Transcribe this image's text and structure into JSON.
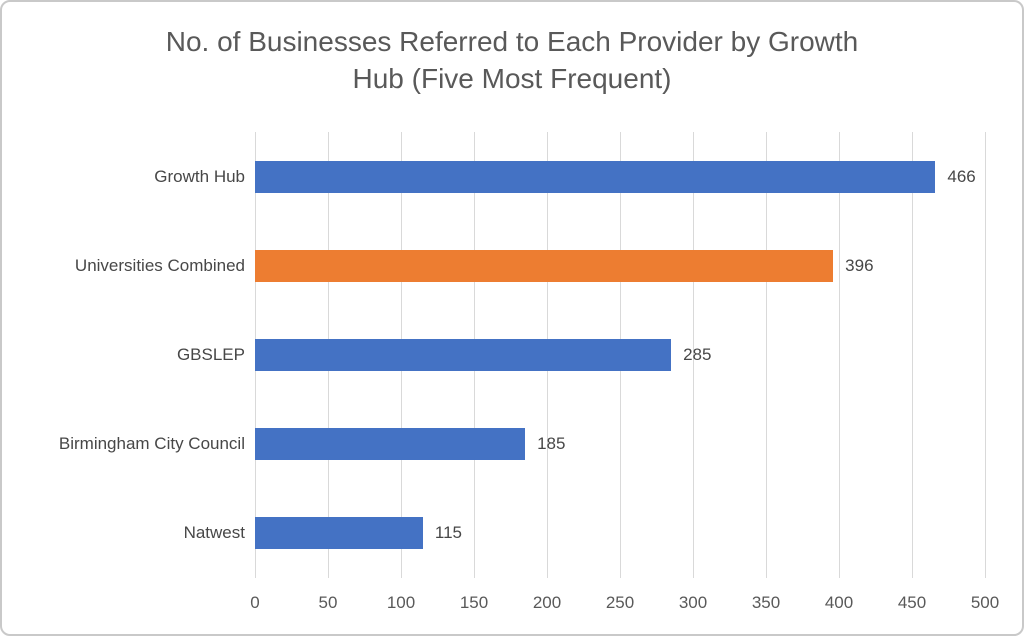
{
  "chart": {
    "title_lines": [
      "No. of Businesses Referred to Each Provider by Growth",
      "Hub (Five Most Frequent)"
    ]
  },
  "chart_data": {
    "type": "bar",
    "orientation": "horizontal",
    "title": "No. of Businesses Referred to Each Provider by Growth Hub (Five Most Frequent)",
    "categories": [
      "Growth Hub",
      "Universities Combined",
      "GBSLEP",
      "Birmingham City Council",
      "Natwest"
    ],
    "values": [
      466,
      396,
      285,
      185,
      115
    ],
    "data_labels": [
      "466",
      "396",
      "285",
      "185",
      "115"
    ],
    "bar_colors": [
      "#4472C4",
      "#ED7D31",
      "#4472C4",
      "#4472C4",
      "#4472C4"
    ],
    "xlabel": "",
    "ylabel": "",
    "xlim": [
      0,
      500
    ],
    "xticks": [
      0,
      50,
      100,
      150,
      200,
      250,
      300,
      350,
      400,
      450,
      500
    ],
    "grid": "vertical-gridlines",
    "legend": "none"
  },
  "colors": {
    "bar_blue": "#4472C4",
    "bar_orange": "#ED7D31",
    "title_text": "#595959",
    "axis_text": "#595959",
    "label_text": "#474747",
    "gridline": "#D9D9D9",
    "frame_border": "#C9C9C9",
    "background": "#FFFFFF"
  }
}
